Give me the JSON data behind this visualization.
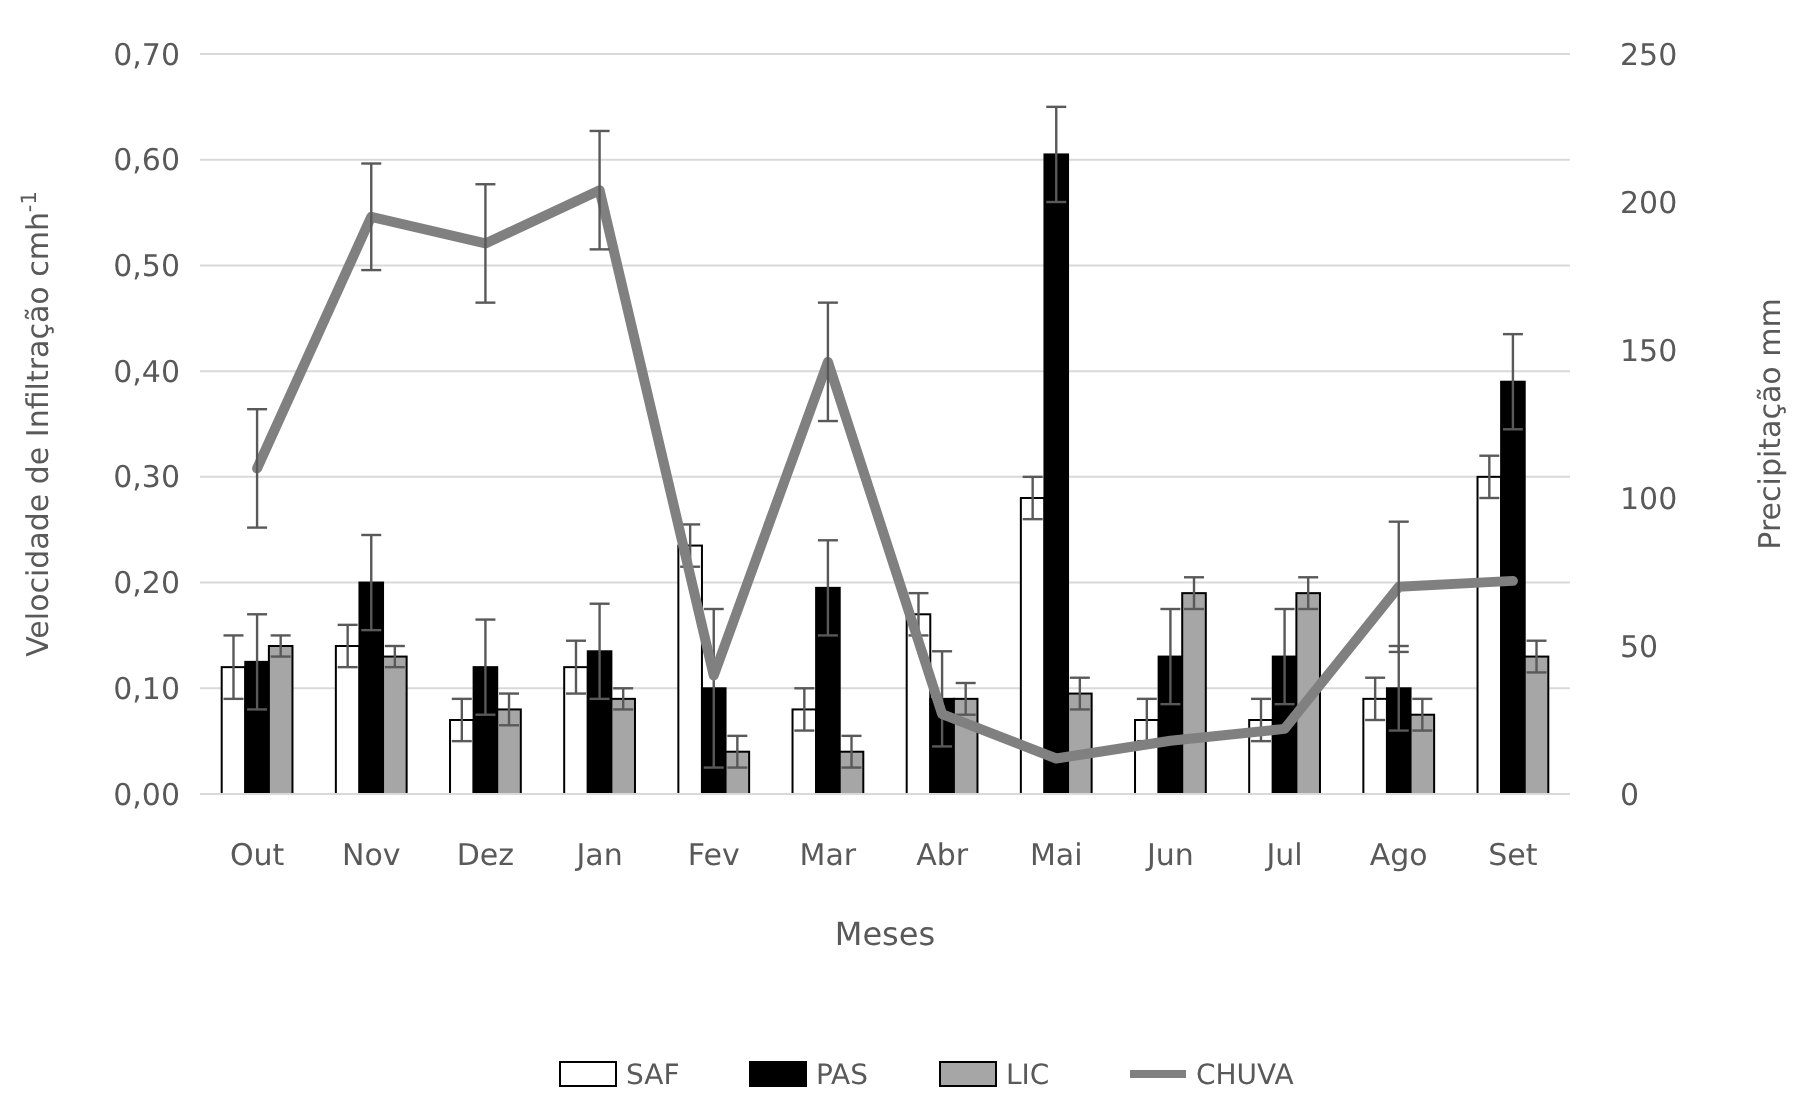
{
  "chart_data": {
    "type": "bar",
    "xlabel": "Meses",
    "ylabel": "Velocidade de Infiltração cmh$^{-1}$",
    "y2label": "Precipitação mm",
    "categories": [
      "Out",
      "Nov",
      "Dez",
      "Jan",
      "Fev",
      "Mar",
      "Abr",
      "Mai",
      "Jun",
      "Jul",
      "Ago",
      "Set"
    ],
    "series": [
      {
        "name": "SAF",
        "color": "#ffffff",
        "values": [
          0.12,
          0.14,
          0.07,
          0.12,
          0.235,
          0.08,
          0.17,
          0.28,
          0.07,
          0.07,
          0.09,
          0.3
        ],
        "errors": [
          0.03,
          0.02,
          0.02,
          0.025,
          0.02,
          0.02,
          0.02,
          0.02,
          0.02,
          0.02,
          0.02,
          0.02
        ]
      },
      {
        "name": "PAS",
        "color": "#000000",
        "values": [
          0.125,
          0.2,
          0.12,
          0.135,
          0.1,
          0.195,
          0.09,
          0.605,
          0.13,
          0.13,
          0.1,
          0.39
        ],
        "errors": [
          0.045,
          0.045,
          0.045,
          0.045,
          0.075,
          0.045,
          0.045,
          0.045,
          0.045,
          0.045,
          0.04,
          0.045
        ]
      },
      {
        "name": "LIC",
        "color": "#a6a6a6",
        "values": [
          0.14,
          0.13,
          0.08,
          0.09,
          0.04,
          0.04,
          0.09,
          0.095,
          0.19,
          0.19,
          0.075,
          0.13
        ],
        "errors": [
          0.01,
          0.01,
          0.015,
          0.01,
          0.015,
          0.015,
          0.015,
          0.015,
          0.015,
          0.015,
          0.015,
          0.015
        ]
      },
      {
        "name": "CHUVA",
        "type": "line",
        "axis": "y2",
        "color": "#808080",
        "values": [
          110,
          195,
          186,
          204,
          40,
          146,
          27,
          12,
          18,
          22,
          70,
          72
        ],
        "errors": [
          20,
          18,
          20,
          20,
          null,
          20,
          null,
          null,
          null,
          null,
          22,
          null
        ]
      }
    ],
    "ylim": [
      0,
      0.7
    ],
    "yticks": [
      {
        "value": 0,
        "label": "0,00"
      },
      {
        "value": 0.1,
        "label": "0,10"
      },
      {
        "value": 0.2,
        "label": "0,20"
      },
      {
        "value": 0.3,
        "label": "0,30"
      },
      {
        "value": 0.4,
        "label": "0,40"
      },
      {
        "value": 0.5,
        "label": "0,50"
      },
      {
        "value": 0.6,
        "label": "0,60"
      },
      {
        "value": 0.7,
        "label": "0,70"
      }
    ],
    "y2lim": [
      0,
      250
    ],
    "y2ticks": [
      0,
      50,
      100,
      150,
      200,
      250
    ],
    "grid": "y",
    "legend": "bottom"
  }
}
